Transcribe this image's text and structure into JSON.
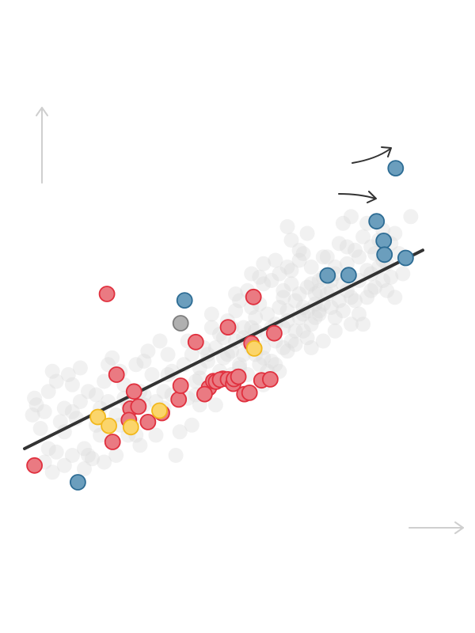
{
  "chart_data": {
    "type": "scatter",
    "title": "",
    "xlabel": "",
    "ylabel": "",
    "xlim": [
      0,
      100
    ],
    "ylim": [
      0,
      100
    ],
    "grid": false,
    "legend": "none",
    "colors": {
      "background_points": "#d9d9d9",
      "red_fill": "#ea7a82",
      "red_stroke": "#e0303e",
      "blue_fill": "#6b9ebd",
      "blue_stroke": "#2d6c94",
      "yellow_fill": "#fbd56b",
      "yellow_stroke": "#f2b81c",
      "gray_fill": "#b0b0b0",
      "gray_stroke": "#7d7d7d",
      "trend_line": "#333333",
      "axis_arrows": "#cfcfcf"
    },
    "trend_line": {
      "x": [
        0,
        100
      ],
      "y": [
        8,
        67
      ]
    },
    "groups": [
      {
        "color": "red",
        "points": [
          [
            2.5,
            3
          ],
          [
            20.7,
            54
          ],
          [
            23.1,
            30
          ],
          [
            22.1,
            10
          ],
          [
            27.5,
            25
          ],
          [
            26.6,
            19.9
          ],
          [
            26.2,
            16.5
          ],
          [
            28.6,
            20.5
          ],
          [
            31,
            15.9
          ],
          [
            34.5,
            18.6
          ],
          [
            38.7,
            22.6
          ],
          [
            39.2,
            26.7
          ],
          [
            43,
            39.7
          ],
          [
            46.3,
            26.1
          ],
          [
            45.2,
            24.2
          ],
          [
            47.4,
            28.1
          ],
          [
            48.1,
            27.9
          ],
          [
            49.8,
            28.8
          ],
          [
            49.1,
            28.5
          ],
          [
            51.1,
            28.6
          ],
          [
            52.4,
            27.3
          ],
          [
            52.6,
            28.7
          ],
          [
            51.1,
            44.1
          ],
          [
            53.7,
            29.4
          ],
          [
            55.2,
            24.2
          ],
          [
            56.5,
            24.6
          ],
          [
            59.5,
            28.3
          ],
          [
            57,
            39.3
          ],
          [
            57.5,
            53.1
          ],
          [
            62.7,
            42.3
          ],
          [
            61.7,
            28.6
          ]
        ]
      },
      {
        "color": "blue",
        "points": [
          [
            13.4,
            -2
          ],
          [
            40.2,
            52.1
          ],
          [
            76.1,
            59.5
          ],
          [
            81.4,
            59.6
          ],
          [
            88.4,
            75.6
          ],
          [
            90.2,
            69.8
          ],
          [
            90.4,
            65.7
          ],
          [
            95.7,
            64.7
          ],
          [
            93.2,
            91.4
          ]
        ]
      },
      {
        "color": "yellow",
        "points": [
          [
            18.4,
            17.4
          ],
          [
            21.2,
            14.8
          ],
          [
            26.7,
            14.4
          ],
          [
            33.9,
            19.3
          ],
          [
            57.7,
            37.8
          ]
        ]
      },
      {
        "color": "gray",
        "points": [
          [
            39.2,
            45.3
          ]
        ]
      }
    ],
    "background_points": [
      [
        2,
        18
      ],
      [
        2.5,
        23
      ],
      [
        3,
        21
      ],
      [
        4,
        14
      ],
      [
        5,
        19
      ],
      [
        6,
        25
      ],
      [
        7,
        31
      ],
      [
        8,
        28
      ],
      [
        9,
        16
      ],
      [
        10,
        20
      ],
      [
        11,
        30
      ],
      [
        12,
        27
      ],
      [
        14,
        22
      ],
      [
        13,
        17
      ],
      [
        15,
        8
      ],
      [
        16,
        6
      ],
      [
        17,
        5
      ],
      [
        18,
        24
      ],
      [
        19,
        12
      ],
      [
        20,
        28
      ],
      [
        21,
        33
      ],
      [
        22,
        35
      ],
      [
        23,
        18
      ],
      [
        24,
        31
      ],
      [
        25,
        23
      ],
      [
        26,
        21
      ],
      [
        27,
        16
      ],
      [
        28,
        12
      ],
      [
        29,
        25
      ],
      [
        30,
        34
      ],
      [
        31,
        37
      ],
      [
        32,
        30
      ],
      [
        33,
        12
      ],
      [
        34,
        40
      ],
      [
        35,
        20
      ],
      [
        36,
        36
      ],
      [
        37,
        31
      ],
      [
        38,
        6
      ],
      [
        39,
        26
      ],
      [
        40,
        33
      ],
      [
        41,
        40
      ],
      [
        42,
        15
      ],
      [
        43,
        28
      ],
      [
        44,
        32
      ],
      [
        45,
        38
      ],
      [
        46,
        36
      ],
      [
        47,
        48
      ],
      [
        48,
        21
      ],
      [
        49,
        42
      ],
      [
        50,
        35
      ],
      [
        51,
        46
      ],
      [
        52,
        37
      ],
      [
        53,
        49
      ],
      [
        54,
        32
      ],
      [
        55,
        41
      ],
      [
        56,
        55
      ],
      [
        57,
        44
      ],
      [
        58,
        43
      ],
      [
        59,
        51
      ],
      [
        60,
        57
      ],
      [
        61,
        48
      ],
      [
        62,
        58
      ],
      [
        63,
        45
      ],
      [
        64,
        60
      ],
      [
        65,
        53
      ],
      [
        66,
        49
      ],
      [
        67,
        61
      ],
      [
        68,
        39
      ],
      [
        69,
        64
      ],
      [
        70,
        50
      ],
      [
        71,
        56
      ],
      [
        72,
        62
      ],
      [
        73,
        47
      ],
      [
        74,
        58
      ],
      [
        75,
        51
      ],
      [
        76,
        65
      ],
      [
        77,
        55
      ],
      [
        78,
        60
      ],
      [
        79,
        69
      ],
      [
        80,
        57
      ],
      [
        81,
        63
      ],
      [
        82,
        53
      ],
      [
        83,
        67
      ],
      [
        84,
        58
      ],
      [
        85,
        71
      ],
      [
        86,
        61
      ],
      [
        87,
        55
      ],
      [
        88,
        66
      ],
      [
        89,
        70
      ],
      [
        90,
        73
      ],
      [
        91,
        63
      ],
      [
        92,
        69
      ],
      [
        94,
        66
      ],
      [
        97,
        77
      ],
      [
        86,
        75
      ],
      [
        80,
        75
      ],
      [
        82,
        77
      ],
      [
        66,
        74
      ],
      [
        67,
        70
      ],
      [
        70,
        66
      ],
      [
        71,
        72
      ],
      [
        54,
        52
      ],
      [
        55,
        44
      ],
      [
        56,
        40
      ],
      [
        58,
        47
      ],
      [
        59,
        33
      ],
      [
        60,
        38
      ],
      [
        61,
        42
      ],
      [
        62,
        44
      ],
      [
        63,
        40
      ],
      [
        64,
        50
      ],
      [
        65,
        44
      ],
      [
        66,
        46
      ],
      [
        68,
        52
      ],
      [
        69,
        47
      ],
      [
        70,
        43
      ],
      [
        71,
        41
      ],
      [
        72,
        45
      ],
      [
        73,
        54
      ],
      [
        74,
        48
      ],
      [
        76,
        54
      ],
      [
        77,
        50
      ],
      [
        78,
        47
      ],
      [
        79,
        52
      ],
      [
        80,
        49
      ],
      [
        81,
        55
      ],
      [
        82,
        45
      ],
      [
        83,
        52
      ],
      [
        84,
        48
      ],
      [
        85,
        45
      ],
      [
        86,
        53
      ],
      [
        87,
        60
      ],
      [
        88,
        56
      ],
      [
        89,
        62
      ],
      [
        90,
        58
      ],
      [
        91,
        55
      ],
      [
        92,
        59
      ],
      [
        93,
        53
      ],
      [
        65,
        55
      ],
      [
        67,
        57
      ],
      [
        69,
        54
      ],
      [
        72,
        57
      ],
      [
        74,
        55
      ],
      [
        75,
        59
      ],
      [
        77,
        58
      ],
      [
        50,
        41
      ],
      [
        52,
        44
      ],
      [
        53,
        40
      ],
      [
        55,
        36
      ],
      [
        57,
        38
      ],
      [
        58,
        36
      ],
      [
        60,
        35
      ],
      [
        62,
        34
      ],
      [
        63,
        33
      ],
      [
        65,
        38
      ],
      [
        66,
        37
      ],
      [
        67,
        40
      ],
      [
        68,
        43
      ],
      [
        70,
        48
      ],
      [
        71,
        49
      ],
      [
        73,
        51
      ],
      [
        74,
        49
      ],
      [
        46,
        34
      ],
      [
        48,
        38
      ],
      [
        49,
        31
      ],
      [
        51,
        36
      ],
      [
        47,
        44
      ],
      [
        44,
        29
      ],
      [
        42,
        36
      ],
      [
        43,
        24
      ],
      [
        36,
        30
      ],
      [
        37,
        24
      ],
      [
        35,
        25
      ],
      [
        33,
        22
      ],
      [
        30,
        24
      ],
      [
        30,
        21
      ],
      [
        28,
        33
      ],
      [
        25,
        27
      ],
      [
        24,
        15
      ],
      [
        21,
        22
      ],
      [
        19,
        20
      ],
      [
        18,
        15
      ],
      [
        16,
        25
      ],
      [
        14,
        32
      ],
      [
        12,
        19
      ],
      [
        10,
        13
      ],
      [
        8,
        7
      ],
      [
        6,
        8
      ],
      [
        5,
        4
      ],
      [
        60,
        27
      ],
      [
        64,
        31
      ],
      [
        54,
        33
      ],
      [
        52,
        30
      ],
      [
        56,
        30
      ],
      [
        72,
        38
      ],
      [
        75,
        40
      ],
      [
        78,
        43
      ],
      [
        61,
        31
      ],
      [
        57,
        50
      ],
      [
        53,
        54
      ],
      [
        59,
        59
      ],
      [
        57,
        60
      ],
      [
        60,
        63
      ],
      [
        63,
        64
      ],
      [
        66,
        62
      ],
      [
        69,
        67
      ],
      [
        75,
        65
      ],
      [
        78,
        62
      ],
      [
        81,
        68
      ],
      [
        84,
        65
      ],
      [
        87,
        68
      ],
      [
        90,
        64
      ],
      [
        93,
        72
      ],
      [
        95,
        60
      ],
      [
        41,
        23
      ],
      [
        44,
        21
      ],
      [
        39,
        13
      ],
      [
        29,
        9
      ],
      [
        26,
        12
      ],
      [
        23,
        6
      ],
      [
        20,
        4
      ],
      [
        7,
        1
      ],
      [
        10,
        3
      ],
      [
        12,
        6
      ],
      [
        15,
        2
      ]
    ]
  }
}
